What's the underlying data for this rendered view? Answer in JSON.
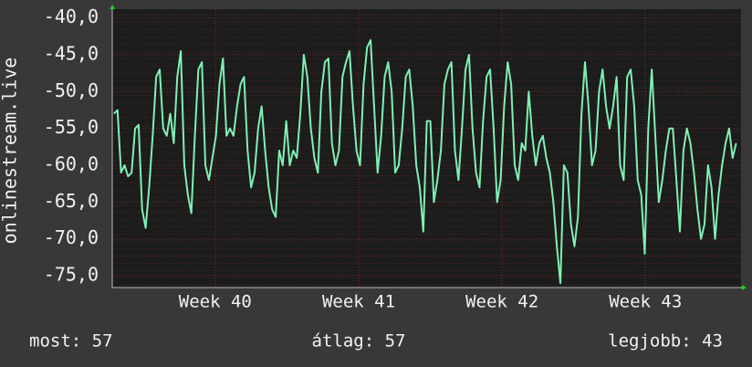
{
  "chart_data": {
    "type": "line",
    "ylabel": "onlinestream.live",
    "x": [
      0,
      1,
      2,
      3,
      4,
      5,
      6,
      7,
      8,
      9,
      10,
      11,
      12,
      13,
      14,
      15,
      16,
      17,
      18,
      19,
      20,
      21,
      22,
      23,
      24,
      25,
      26,
      27,
      28,
      29,
      30,
      31,
      32,
      33,
      34,
      35,
      36,
      37,
      38,
      39,
      40,
      41,
      42,
      43,
      44,
      45,
      46,
      47,
      48,
      49,
      50,
      51,
      52,
      53,
      54,
      55,
      56,
      57,
      58,
      59,
      60,
      61,
      62,
      63,
      64,
      65,
      66,
      67,
      68,
      69,
      70,
      71,
      72,
      73,
      74,
      75,
      76,
      77,
      78,
      79,
      80,
      81,
      82,
      83,
      84,
      85,
      86,
      87,
      88,
      89,
      90,
      91,
      92,
      93,
      94,
      95,
      96,
      97,
      98,
      99,
      100,
      101,
      102,
      103,
      104,
      105,
      106,
      107,
      108,
      109,
      110,
      111,
      112,
      113,
      114,
      115,
      116,
      117,
      118,
      119,
      120,
      121,
      122,
      123,
      124,
      125,
      126,
      127,
      128,
      129,
      130,
      131,
      132,
      133,
      134,
      135,
      136,
      137,
      138,
      139,
      140,
      141,
      142,
      143,
      144,
      145,
      146,
      147,
      148,
      149,
      150,
      151,
      152,
      153,
      154,
      155,
      156,
      157,
      158,
      159,
      160,
      161,
      162,
      163,
      164,
      165,
      166,
      167,
      168,
      169,
      170,
      171,
      172,
      173,
      174,
      175,
      176,
      177
    ],
    "series": [
      {
        "color": "#7ff0b4",
        "values": [
          -53,
          -52.5,
          -61,
          -60,
          -61.5,
          -61,
          -55,
          -54.5,
          -66,
          -68.5,
          -63,
          -56,
          -48,
          -47,
          -55,
          -56,
          -53,
          -57,
          -48,
          -44.5,
          -60,
          -64,
          -66.5,
          -56,
          -47,
          -46,
          -60,
          -62,
          -59,
          -56,
          -49,
          -45.5,
          -56,
          -55,
          -56,
          -52,
          -49,
          -48,
          -58,
          -63,
          -61,
          -55,
          -52,
          -58,
          -63,
          -66,
          -67,
          -58,
          -60,
          -54,
          -60,
          -58,
          -59,
          -53,
          -45,
          -48,
          -55,
          -59,
          -61,
          -50,
          -46,
          -45.5,
          -57,
          -60,
          -58,
          -48,
          -46,
          -44.5,
          -52,
          -58,
          -60,
          -49,
          -44,
          -43,
          -52,
          -61,
          -56,
          -48,
          -46,
          -50,
          -61,
          -60,
          -55,
          -48,
          -47,
          -52,
          -60,
          -63,
          -69,
          -54,
          -54,
          -65,
          -62,
          -58,
          -49,
          -47,
          -46,
          -58,
          -62,
          -55,
          -47,
          -45,
          -55,
          -61,
          -63,
          -54,
          -48,
          -47,
          -55,
          -65,
          -62,
          -52,
          -46,
          -49,
          -60,
          -62,
          -57,
          -58,
          -50,
          -56,
          -60,
          -57,
          -56,
          -59,
          -61,
          -65,
          -71,
          -76,
          -60,
          -61,
          -68,
          -71,
          -67,
          -53,
          -46,
          -52,
          -60,
          -58,
          -50,
          -47,
          -52,
          -55,
          -52,
          -48,
          -60,
          -62,
          -48,
          -47,
          -52,
          -62,
          -64,
          -72,
          -55,
          -47,
          -56,
          -65,
          -62,
          -58,
          -55,
          -55,
          -62,
          -69,
          -58,
          -55,
          -57,
          -61,
          -66,
          -70,
          -68,
          -60,
          -63,
          -70,
          -64,
          -60,
          -57,
          -55,
          -59,
          -57
        ]
      }
    ],
    "xlim": [
      -0.5,
      178.4
    ],
    "xticks": [
      {
        "value": 28.8,
        "label": "Week 40"
      },
      {
        "value": 69.6,
        "label": "Week 41"
      },
      {
        "value": 110.4,
        "label": "Week 42"
      },
      {
        "value": 151.2,
        "label": "Week 43"
      }
    ],
    "ylim": [
      -76.6,
      -38.8
    ],
    "yticks": [
      {
        "value": -40,
        "label": "-40,0"
      },
      {
        "value": -45,
        "label": "-45,0"
      },
      {
        "value": -50,
        "label": "-50,0"
      },
      {
        "value": -55,
        "label": "-55,0"
      },
      {
        "value": -60,
        "label": "-60,0"
      },
      {
        "value": -65,
        "label": "-65,0"
      },
      {
        "value": -70,
        "label": "-70,0"
      },
      {
        "value": -75,
        "label": "-75,0"
      }
    ],
    "grid": true,
    "stats": [
      "most: 57",
      "átlag: 57",
      "legjobb: 43"
    ]
  }
}
